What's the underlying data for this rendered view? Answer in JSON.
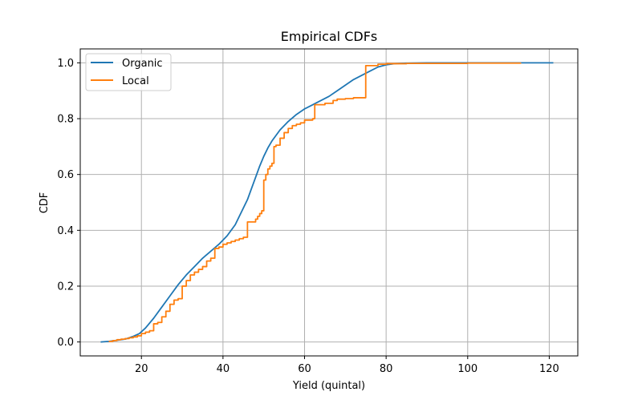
{
  "chart_data": {
    "type": "line",
    "title": "Empirical CDFs",
    "xlabel": "Yield (quintal)",
    "ylabel": "CDF",
    "xlim": [
      5,
      127
    ],
    "ylim": [
      -0.05,
      1.05
    ],
    "x_ticks": [
      20,
      40,
      60,
      80,
      100,
      120
    ],
    "y_ticks": [
      0.0,
      0.2,
      0.4,
      0.6,
      0.8,
      1.0
    ],
    "x_tick_labels": [
      "20",
      "40",
      "60",
      "80",
      "100",
      "120"
    ],
    "y_tick_labels": [
      "0.0",
      "0.2",
      "0.4",
      "0.6",
      "0.8",
      "1.0"
    ],
    "grid": true,
    "legend_position": "top-left",
    "series": [
      {
        "name": "Organic",
        "color": "#1f77b4",
        "style": "smooth",
        "points": [
          [
            10,
            0.0
          ],
          [
            12,
            0.002
          ],
          [
            14,
            0.006
          ],
          [
            16,
            0.01
          ],
          [
            18,
            0.02
          ],
          [
            19.5,
            0.03
          ],
          [
            21,
            0.05
          ],
          [
            23,
            0.085
          ],
          [
            25,
            0.125
          ],
          [
            27,
            0.165
          ],
          [
            29,
            0.205
          ],
          [
            31,
            0.24
          ],
          [
            33,
            0.27
          ],
          [
            35,
            0.3
          ],
          [
            37,
            0.325
          ],
          [
            39,
            0.35
          ],
          [
            41,
            0.38
          ],
          [
            43,
            0.42
          ],
          [
            44,
            0.45
          ],
          [
            46,
            0.51
          ],
          [
            47,
            0.55
          ],
          [
            48,
            0.59
          ],
          [
            49,
            0.63
          ],
          [
            50,
            0.665
          ],
          [
            51,
            0.695
          ],
          [
            52,
            0.72
          ],
          [
            54,
            0.76
          ],
          [
            56,
            0.79
          ],
          [
            58,
            0.815
          ],
          [
            60,
            0.835
          ],
          [
            62,
            0.85
          ],
          [
            64,
            0.865
          ],
          [
            66,
            0.88
          ],
          [
            68,
            0.9
          ],
          [
            70,
            0.92
          ],
          [
            72,
            0.94
          ],
          [
            74,
            0.955
          ],
          [
            76,
            0.97
          ],
          [
            78,
            0.985
          ],
          [
            80,
            0.993
          ],
          [
            82,
            0.997
          ],
          [
            85,
            0.999
          ],
          [
            90,
            1.0
          ],
          [
            100,
            1.0
          ],
          [
            110,
            1.0
          ],
          [
            121,
            1.0
          ]
        ]
      },
      {
        "name": "Local",
        "color": "#ff7f0e",
        "style": "step",
        "points": [
          [
            12,
            0.002
          ],
          [
            13,
            0.005
          ],
          [
            14,
            0.008
          ],
          [
            15,
            0.01
          ],
          [
            16,
            0.012
          ],
          [
            17,
            0.015
          ],
          [
            18,
            0.018
          ],
          [
            19,
            0.022
          ],
          [
            20,
            0.03
          ],
          [
            21,
            0.035
          ],
          [
            22,
            0.04
          ],
          [
            23,
            0.065
          ],
          [
            24,
            0.07
          ],
          [
            25,
            0.09
          ],
          [
            26,
            0.11
          ],
          [
            27,
            0.135
          ],
          [
            28,
            0.15
          ],
          [
            29,
            0.155
          ],
          [
            30,
            0.2
          ],
          [
            31,
            0.22
          ],
          [
            32,
            0.24
          ],
          [
            33,
            0.25
          ],
          [
            34,
            0.26
          ],
          [
            35,
            0.27
          ],
          [
            36,
            0.29
          ],
          [
            37,
            0.3
          ],
          [
            38,
            0.335
          ],
          [
            39,
            0.34
          ],
          [
            40,
            0.35
          ],
          [
            41,
            0.355
          ],
          [
            42,
            0.36
          ],
          [
            43,
            0.365
          ],
          [
            44,
            0.37
          ],
          [
            45,
            0.375
          ],
          [
            46,
            0.43
          ],
          [
            47,
            0.43
          ],
          [
            48,
            0.44
          ],
          [
            48.5,
            0.45
          ],
          [
            49,
            0.46
          ],
          [
            49.5,
            0.47
          ],
          [
            50,
            0.58
          ],
          [
            50.5,
            0.6
          ],
          [
            51,
            0.62
          ],
          [
            51.5,
            0.63
          ],
          [
            52,
            0.64
          ],
          [
            52.5,
            0.7
          ],
          [
            53,
            0.705
          ],
          [
            54,
            0.73
          ],
          [
            55,
            0.75
          ],
          [
            56,
            0.765
          ],
          [
            57,
            0.775
          ],
          [
            58,
            0.78
          ],
          [
            59,
            0.785
          ],
          [
            60,
            0.795
          ],
          [
            62,
            0.8
          ],
          [
            62.5,
            0.85
          ],
          [
            65,
            0.855
          ],
          [
            67,
            0.865
          ],
          [
            68,
            0.87
          ],
          [
            70,
            0.872
          ],
          [
            72,
            0.875
          ],
          [
            75,
            0.99
          ],
          [
            78,
            0.995
          ],
          [
            80,
            0.997
          ],
          [
            85,
            0.998
          ],
          [
            100,
            0.999
          ],
          [
            113,
            1.0
          ]
        ]
      }
    ]
  }
}
